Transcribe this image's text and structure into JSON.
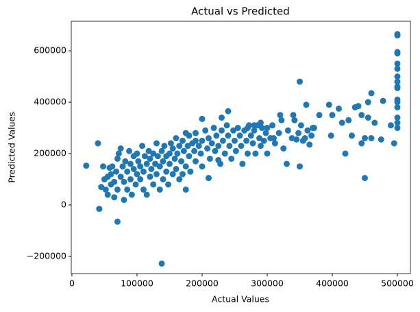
{
  "chart_data": {
    "type": "scatter",
    "title": "Actual vs Predicted",
    "x_label": "Actual Values",
    "y_label": "Predicted Values",
    "color": "#1f77b4",
    "grid": false,
    "xlim": [
      -1000,
      520000
    ],
    "ylim": [
      -267000,
      715000
    ],
    "xticks": [
      0,
      100000,
      200000,
      300000,
      400000,
      500000
    ],
    "yticks": [
      {
        "value": -200000,
        "label": "−200000"
      },
      0,
      200000,
      400000,
      600000
    ],
    "x": [
      22000,
      40000,
      42000,
      70000,
      138000,
      350000,
      450000,
      420000,
      500000,
      500000,
      500000,
      500000,
      500000,
      500000,
      500000,
      500000,
      500000,
      500000,
      500000,
      500000,
      500000,
      500000,
      500000,
      500000,
      495000,
      478000,
      460000,
      455000,
      440000,
      445000,
      460000,
      475000,
      395000,
      398000,
      400000,
      410000,
      415000,
      425000,
      430000,
      435000,
      445000,
      450000,
      455000,
      465000,
      490000,
      330000,
      350000,
      310000,
      360000,
      370000,
      380000,
      340000,
      345000,
      355000,
      365000,
      320000,
      300000,
      290000,
      280000,
      270000,
      240000,
      230000,
      225000,
      210000,
      175000,
      170000,
      180000,
      190000,
      200000,
      45000,
      48000,
      50000,
      52000,
      55000,
      55000,
      58000,
      60000,
      60000,
      62000,
      65000,
      65000,
      68000,
      70000,
      70000,
      72000,
      75000,
      75000,
      78000,
      80000,
      80000,
      82000,
      85000,
      85000,
      88000,
      90000,
      90000,
      92000,
      95000,
      95000,
      98000,
      100000,
      100000,
      102000,
      105000,
      105000,
      108000,
      110000,
      110000,
      112000,
      115000,
      115000,
      118000,
      120000,
      120000,
      122000,
      125000,
      125000,
      128000,
      130000,
      130000,
      132000,
      135000,
      135000,
      138000,
      140000,
      140000,
      142000,
      145000,
      145000,
      148000,
      150000,
      150000,
      152000,
      155000,
      155000,
      158000,
      160000,
      160000,
      162000,
      165000,
      165000,
      168000,
      170000,
      172000,
      175000,
      175000,
      178000,
      180000,
      182000,
      185000,
      188000,
      190000,
      190000,
      195000,
      198000,
      200000,
      200000,
      205000,
      208000,
      210000,
      212000,
      215000,
      218000,
      220000,
      222000,
      225000,
      228000,
      230000,
      232000,
      235000,
      238000,
      240000,
      242000,
      245000,
      248000,
      250000,
      252000,
      255000,
      258000,
      260000,
      262000,
      265000,
      268000,
      270000,
      272000,
      275000,
      278000,
      280000,
      282000,
      285000,
      288000,
      290000,
      292000,
      295000,
      298000,
      300000,
      305000,
      308000,
      312000,
      318000,
      322000,
      325000,
      332000,
      338000,
      342000,
      348000,
      352000,
      358000,
      362000,
      368000,
      372000
    ],
    "values": [
      153000,
      240000,
      -15000,
      -65000,
      -228000,
      480000,
      105000,
      200000,
      660000,
      665000,
      590000,
      595000,
      550000,
      530000,
      500000,
      480000,
      460000,
      455000,
      410000,
      400000,
      380000,
      340000,
      320000,
      300000,
      240000,
      405000,
      435000,
      400000,
      385000,
      240000,
      260000,
      255000,
      390000,
      270000,
      350000,
      375000,
      320000,
      330000,
      270000,
      380000,
      350000,
      260000,
      340000,
      320000,
      310000,
      160000,
      150000,
      260000,
      390000,
      300000,
      350000,
      350000,
      255000,
      250000,
      235000,
      350000,
      300000,
      320000,
      310000,
      300000,
      365000,
      340000,
      175000,
      105000,
      60000,
      120000,
      270000,
      250000,
      335000,
      70000,
      150000,
      100000,
      60000,
      110000,
      40000,
      145000,
      80000,
      120000,
      150000,
      90000,
      30000,
      130000,
      60000,
      180000,
      200000,
      110000,
      220000,
      150000,
      20000,
      90000,
      170000,
      130000,
      60000,
      210000,
      100000,
      160000,
      40000,
      190000,
      140000,
      80000,
      120000,
      200000,
      170000,
      100000,
      150000,
      230000,
      130000,
      60000,
      190000,
      160000,
      40000,
      210000,
      110000,
      180000,
      140000,
      80000,
      200000,
      160000,
      120000,
      240000,
      190000,
      150000,
      60000,
      210000,
      100000,
      170000,
      230000,
      130000,
      190000,
      80000,
      200000,
      160000,
      240000,
      120000,
      220000,
      180000,
      140000,
      260000,
      200000,
      100000,
      230000,
      170000,
      250000,
      210000,
      150000,
      280000,
      230000,
      190000,
      130000,
      240000,
      210000,
      170000,
      280000,
      230000,
      200000,
      250000,
      150000,
      290000,
      220000,
      260000,
      180000,
      240000,
      300000,
      210000,
      270000,
      230000,
      160000,
      290000,
      250000,
      200000,
      310000,
      270000,
      230000,
      180000,
      290000,
      250000,
      210000,
      300000,
      270000,
      230000,
      160000,
      290000,
      250000,
      200000,
      310000,
      270000,
      240000,
      290000,
      200000,
      310000,
      260000,
      230000,
      300000,
      250000,
      280000,
      200000,
      260000,
      310000,
      240000,
      280000,
      330000,
      220000,
      290000,
      260000,
      330000,
      280000,
      310000,
      260000,
      290000,
      270000,
      300000
    ]
  }
}
